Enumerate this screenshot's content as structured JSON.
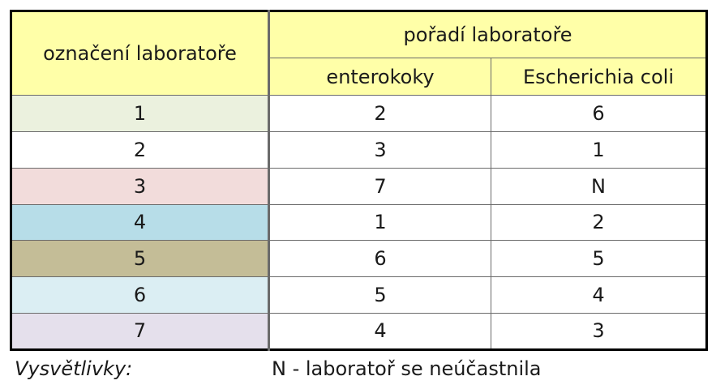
{
  "table": {
    "header": {
      "lab_label": "označení laboratoře",
      "rank_label": "pořadí laboratoře",
      "col_enterococci": "enterokoky",
      "col_ecoli": "Escherichia coli"
    },
    "rows": [
      {
        "lab": "1",
        "enterokoky": "2",
        "ecoli": "6",
        "color": "#ebf1de"
      },
      {
        "lab": "2",
        "enterokoky": "3",
        "ecoli": "1",
        "color": "#ffffff"
      },
      {
        "lab": "3",
        "enterokoky": "7",
        "ecoli": "N",
        "color": "#f2dcdb"
      },
      {
        "lab": "4",
        "enterokoky": "1",
        "ecoli": "2",
        "color": "#b7dde8"
      },
      {
        "lab": "5",
        "enterokoky": "6",
        "ecoli": "5",
        "color": "#c4bd97"
      },
      {
        "lab": "6",
        "enterokoky": "5",
        "ecoli": "4",
        "color": "#dbeef3"
      },
      {
        "lab": "7",
        "enterokoky": "4",
        "ecoli": "3",
        "color": "#e5e0ec"
      }
    ]
  },
  "legend": {
    "title": "Vysvětlivky:",
    "note": "N - laboratoř se neúčastnila"
  }
}
